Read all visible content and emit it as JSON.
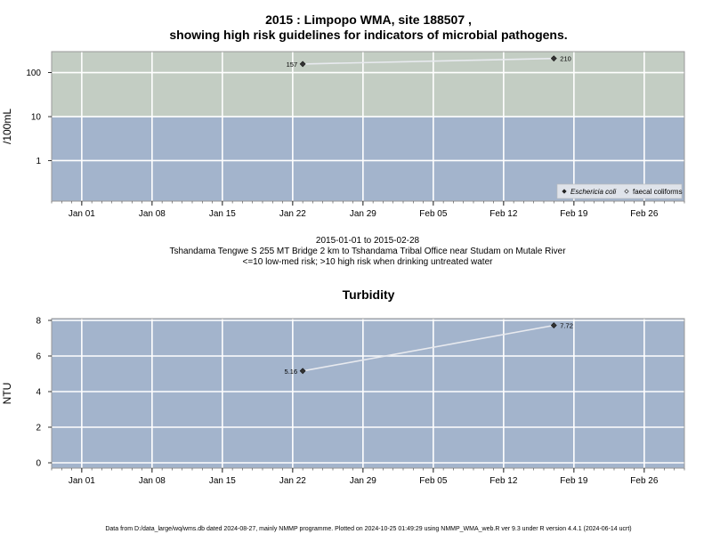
{
  "chart_data": [
    {
      "type": "line",
      "title_line1": "2015 : Limpopo WMA, site 188507 ,",
      "title_line2": "showing high risk guidelines for indicators of microbial pathogens.",
      "ylabel": "/100mL",
      "yscale": "log",
      "ylim": [
        0.12,
        300
      ],
      "xlim": [
        "2014-12-29",
        "2015-03-02"
      ],
      "x_ticks": [
        {
          "date": "2015-01-01",
          "label": "Jan 01"
        },
        {
          "date": "2015-01-08",
          "label": "Jan 08"
        },
        {
          "date": "2015-01-15",
          "label": "Jan 15"
        },
        {
          "date": "2015-01-22",
          "label": "Jan 22"
        },
        {
          "date": "2015-01-29",
          "label": "Jan 29"
        },
        {
          "date": "2015-02-05",
          "label": "Feb 05"
        },
        {
          "date": "2015-02-12",
          "label": "Feb 12"
        },
        {
          "date": "2015-02-19",
          "label": "Feb 19"
        },
        {
          "date": "2015-02-26",
          "label": "Feb 26"
        }
      ],
      "y_ticks": [
        {
          "value": 1,
          "label": "1"
        },
        {
          "value": 10,
          "label": "10"
        },
        {
          "value": 100,
          "label": "100"
        }
      ],
      "bands": [
        {
          "from": 0.12,
          "to": 10,
          "color": "#a3b4cc"
        },
        {
          "from": 10,
          "to": 300,
          "color": "#c3cdc3"
        }
      ],
      "series": [
        {
          "name": "Eschericia coli",
          "marker": "filled-diamond",
          "color": "#333333",
          "points": [
            {
              "x": "2015-01-23",
              "y": 157,
              "label": "157"
            },
            {
              "x": "2015-02-17",
              "y": 210,
              "label": "210"
            }
          ]
        }
      ],
      "legend": {
        "position": "bottom-right",
        "entries": [
          {
            "label": "Eschericia coli",
            "marker": "filled-diamond"
          },
          {
            "label": "faecal coliforms",
            "marker": "open-diamond"
          }
        ]
      }
    },
    {
      "type": "line",
      "title": "Turbidity",
      "ylabel": "NTU",
      "ylim": [
        -0.3,
        8.1
      ],
      "xlim": [
        "2014-12-29",
        "2015-03-02"
      ],
      "x_ticks": [
        {
          "date": "2015-01-01",
          "label": "Jan 01"
        },
        {
          "date": "2015-01-08",
          "label": "Jan 08"
        },
        {
          "date": "2015-01-15",
          "label": "Jan 15"
        },
        {
          "date": "2015-01-22",
          "label": "Jan 22"
        },
        {
          "date": "2015-01-29",
          "label": "Jan 29"
        },
        {
          "date": "2015-02-05",
          "label": "Feb 05"
        },
        {
          "date": "2015-02-12",
          "label": "Feb 12"
        },
        {
          "date": "2015-02-19",
          "label": "Feb 19"
        },
        {
          "date": "2015-02-26",
          "label": "Feb 26"
        }
      ],
      "y_ticks": [
        {
          "value": 0,
          "label": "0"
        },
        {
          "value": 2,
          "label": "2"
        },
        {
          "value": 4,
          "label": "4"
        },
        {
          "value": 6,
          "label": "6"
        },
        {
          "value": 8,
          "label": "8"
        }
      ],
      "bands": [
        {
          "from": -0.3,
          "to": 8.1,
          "color": "#a3b4cc"
        }
      ],
      "series": [
        {
          "name": "",
          "marker": "filled-diamond",
          "color": "#333333",
          "points": [
            {
              "x": "2015-01-23",
              "y": 5.16,
              "label": "5.16"
            },
            {
              "x": "2015-02-17",
              "y": 7.72,
              "label": "7.72"
            }
          ]
        }
      ]
    }
  ],
  "caption": {
    "line1": "2015-01-01 to 2015-02-28",
    "line2": "Tshandama Tengwe S 255 MT Bridge 2 km to Tshandama Tribal Office near Studam on Mutale River",
    "line3": "<=10 low-med risk; >10 high risk when drinking untreated water"
  },
  "footer": "Data from D:/data_large/wq/wms.db dated 2024-08-27, mainly NMMP programme. Plotted on 2024-10-25 01:49:29 using NMMP_WMA_web.R ver 9.3 under R version 4.4.1 (2024-06-14 ucrt)"
}
